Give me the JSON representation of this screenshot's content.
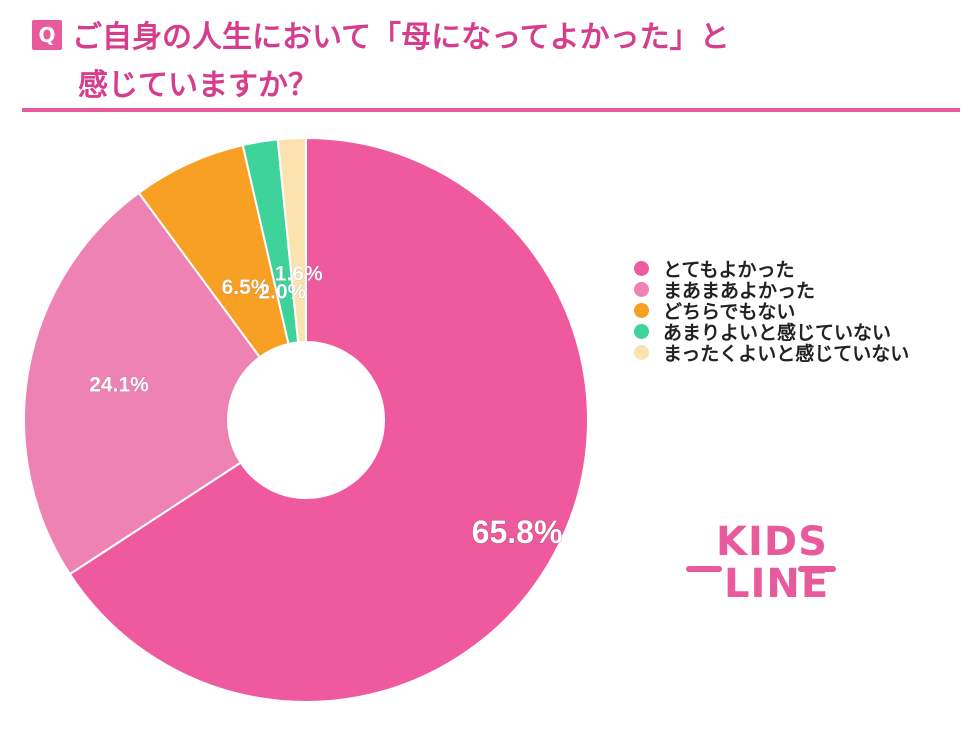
{
  "header": {
    "badge": "Q",
    "title_line1": "ご自身の人生において「母になってよかった」と",
    "title_line2": "感じていますか？"
  },
  "colors": {
    "accent": "#e85a9c",
    "title": "#d63d8c"
  },
  "chart_data": {
    "type": "pie",
    "style": "donut",
    "start": "12 o'clock, clockwise",
    "categories": [
      "とてもよかった",
      "まあまあよかった",
      "どちらでもない",
      "あまりよいと感じていない",
      "まったくよいと感じていない"
    ],
    "values": [
      65.8,
      24.1,
      6.5,
      2.0,
      1.6
    ],
    "value_labels": [
      "65.8%",
      "24.1%",
      "6.5%",
      "2.0%",
      "1.6%"
    ],
    "colors": [
      "#ef5a9e",
      "#ee82b3",
      "#f7a024",
      "#3dd39a",
      "#fbe3b0"
    ],
    "legend_position": "right"
  },
  "logo": {
    "line1": "KIDS",
    "line2": "LINE"
  }
}
